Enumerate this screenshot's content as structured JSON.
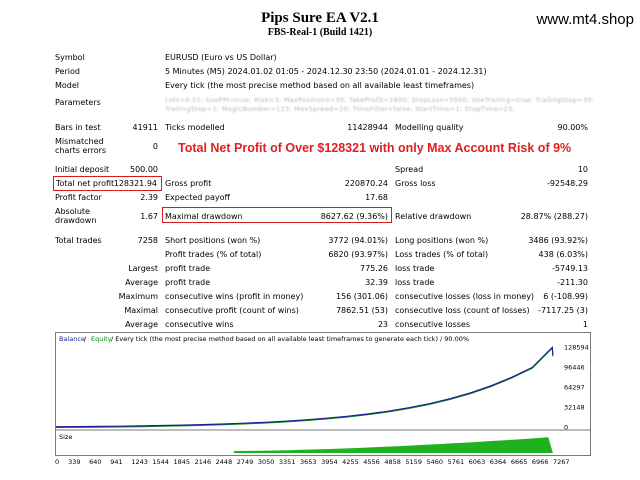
{
  "header": {
    "title": "Pips Sure EA V2.1",
    "subtitle": "FBS-Real-1 (Build 1421)",
    "website": "www.mt4.shop"
  },
  "settings": {
    "symbol_label": "Symbol",
    "symbol_value": "EURUSD (Euro vs US Dollar)",
    "period_label": "Period",
    "period_value": "5 Minutes (M5) 2024.01.02 01:05 - 2024.12.30 23:50 (2024.01.01 - 2024.12.31)",
    "model_label": "Model",
    "model_value": "Every tick (the most precise method based on all available least timeframes)",
    "parameters_label": "Parameters",
    "parameters_line1": "Lots=0.01; UsePM=true; Risk=3; MaxPositions=30; TakeProfit=1600; StopLoss=3500; UseTrailing=true; TrailingStop=30;",
    "parameters_line2": "TrailingStep=1; MagicNumber=123; MaxSpread=20; TimeFilter=false; StartTime=1; StopTime=23;"
  },
  "stats": {
    "bars_label": "Bars in test",
    "bars_value": "41911",
    "ticks_label": "Ticks modelled",
    "ticks_value": "11428944",
    "quality_label": "Modelling quality",
    "quality_value": "90.00%",
    "mismatch_label1": "Mismatched",
    "mismatch_label2": "charts errors",
    "mismatch_value": "0",
    "headline": "Total Net Profit of Over $128321 with only Max Account Risk of 9%",
    "deposit_label": "Initial deposit",
    "deposit_value": "500.00",
    "spread_label": "Spread",
    "spread_value": "10",
    "net_label": "Total net profit",
    "net_value": "128321.94",
    "gross_profit_label": "Gross profit",
    "gross_profit_value": "220870.24",
    "gross_loss_label": "Gross loss",
    "gross_loss_value": "-92548.29",
    "pf_label": "Profit factor",
    "pf_value": "2.39",
    "payoff_label": "Expected payoff",
    "payoff_value": "17.68",
    "abs_dd_label1": "Absolute",
    "abs_dd_label2": "drawdown",
    "abs_dd_value": "1.67",
    "max_dd_label": "Maximal drawdown",
    "max_dd_value": "8627.62 (9.36%)",
    "rel_dd_label": "Relative drawdown",
    "rel_dd_value": "28.87% (288.27)",
    "trades_label": "Total trades",
    "trades_value": "7258",
    "short_label": "Short positions (won %)",
    "short_value": "3772 (94.01%)",
    "long_label": "Long positions (won %)",
    "long_value": "3486 (93.92%)",
    "profit_trades_label": "Profit trades (% of total)",
    "profit_trades_value": "6820 (93.97%)",
    "loss_trades_label": "Loss trades (% of total)",
    "loss_trades_value": "438 (6.03%)",
    "largest_label": "Largest",
    "largest_profit_label": "profit trade",
    "largest_profit_value": "775.26",
    "largest_loss_label": "loss trade",
    "largest_loss_value": "-5749.13",
    "average_label": "Average",
    "average_profit_label": "profit trade",
    "average_profit_value": "32.39",
    "average_loss_label": "loss trade",
    "average_loss_value": "-211.30",
    "maximum_label": "Maximum",
    "max_cons_wins_label": "consecutive wins (profit in money)",
    "max_cons_wins_value": "156 (301.06)",
    "max_cons_losses_label": "consecutive losses (loss in money)",
    "max_cons_losses_value": "6 (-108.99)",
    "maximal_label": "Maximal",
    "maximal_cons_profit_label": "consecutive profit (count of wins)",
    "maximal_cons_profit_value": "7862.51 (53)",
    "maximal_cons_loss_label": "consecutive loss (count of losses)",
    "maximal_cons_loss_value": "-7117.25 (3)",
    "average2_label": "Average",
    "avg_cons_wins_label": "consecutive wins",
    "avg_cons_wins_value": "23",
    "avg_cons_losses_label": "consecutive losses",
    "avg_cons_losses_value": "1"
  },
  "chart_data": {
    "type": "line",
    "legend_balance": "Balance",
    "legend_sep1": " / ",
    "legend_equity": "Equity",
    "legend_rest": " / Every tick (the most precise method based on all available least timeframes to generate each tick) / 90.00%",
    "size_label": "Size",
    "balance_color": "#1e1e9a",
    "equity_color": "#0a8a0a",
    "xlim": [
      0,
      7400
    ],
    "ylim": [
      0,
      132000
    ],
    "x_ticks": [
      "0",
      "339",
      "640",
      "941",
      "1243",
      "1544",
      "1845",
      "2146",
      "2448",
      "2749",
      "3050",
      "3351",
      "3653",
      "3954",
      "4255",
      "4556",
      "4858",
      "5159",
      "5460",
      "5761",
      "6063",
      "6364",
      "6665",
      "6966",
      "7267"
    ],
    "y_ticks": [
      "128594",
      "96446",
      "64297",
      "32148",
      "0"
    ],
    "series": [
      {
        "name": "Balance",
        "x": [
          0,
          339,
          640,
          941,
          1243,
          1544,
          1845,
          2146,
          2448,
          2749,
          3050,
          3351,
          3653,
          3954,
          4255,
          4556,
          4858,
          5159,
          5460,
          5761,
          6063,
          6364,
          6665,
          6966,
          7267,
          7258
        ],
        "y": [
          500,
          700,
          900,
          1300,
          1800,
          2400,
          3100,
          3900,
          4900,
          6100,
          7600,
          9400,
          11600,
          14200,
          17300,
          21000,
          25500,
          31000,
          37500,
          45500,
          55000,
          66500,
          80000,
          96000,
          115000,
          128321
        ]
      }
    ]
  }
}
